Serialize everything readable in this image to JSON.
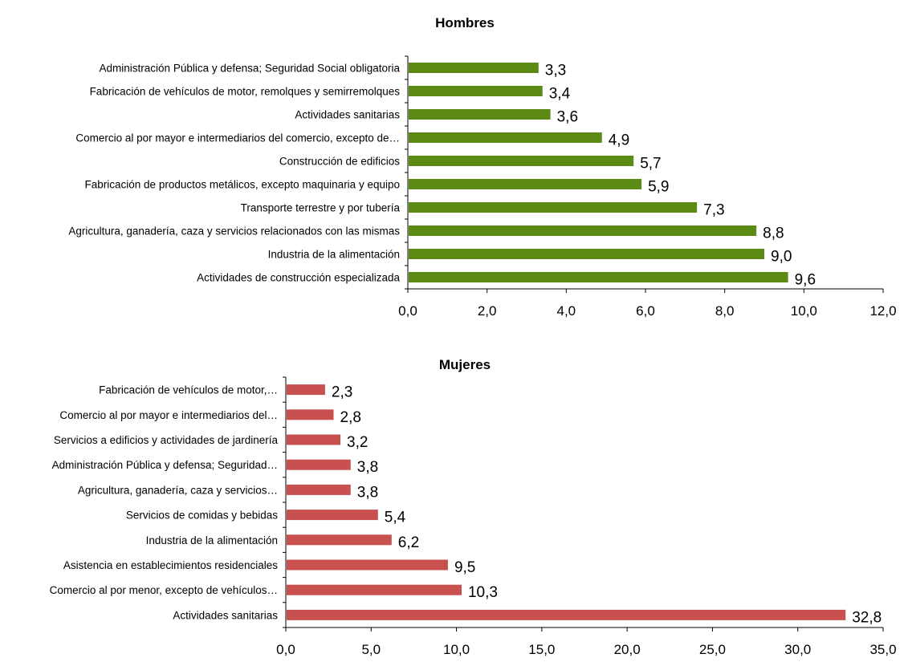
{
  "colors": {
    "hombres": "#5b8a15",
    "mujeres": "#c8504f"
  },
  "chart_data": [
    {
      "type": "bar",
      "orientation": "horizontal",
      "title": "Hombres",
      "categories": [
        "Administración Pública y defensa; Seguridad Social obligatoria",
        "Fabricación de vehículos de motor, remolques y semirremolques",
        "Actividades sanitarias",
        "Comercio al por mayor e intermediarios del comercio, excepto de…",
        "Construcción de edificios",
        "Fabricación de productos metálicos, excepto maquinaria y equipo",
        "Transporte terrestre y por tubería",
        "Agricultura, ganadería, caza y servicios relacionados con las mismas",
        "Industria de la alimentación",
        "Actividades de construcción especializada"
      ],
      "values": [
        3.3,
        3.4,
        3.6,
        4.9,
        5.7,
        5.9,
        7.3,
        8.8,
        9.0,
        9.6
      ],
      "value_labels": [
        "3,3",
        "3,4",
        "3,6",
        "4,9",
        "5,7",
        "5,9",
        "7,3",
        "8,8",
        "9,0",
        "9,6"
      ],
      "xlim": [
        0,
        12
      ],
      "ticks": [
        "0,0",
        "2,0",
        "4,0",
        "6,0",
        "8,0",
        "10,0",
        "12,0"
      ],
      "grid": false
    },
    {
      "type": "bar",
      "orientation": "horizontal",
      "title": "Mujeres",
      "categories": [
        "Fabricación de vehículos de motor,…",
        "Comercio al por mayor e intermediarios del…",
        "Servicios a edificios y actividades de jardinería",
        "Administración Pública y defensa; Seguridad…",
        "Agricultura, ganadería, caza y servicios…",
        "Servicios de comidas y bebidas",
        "Industria de la alimentación",
        "Asistencia en establecimientos residenciales",
        "Comercio al por menor, excepto de vehículos…",
        "Actividades sanitarias"
      ],
      "values": [
        2.3,
        2.8,
        3.2,
        3.8,
        3.8,
        5.4,
        6.2,
        9.5,
        10.3,
        32.8
      ],
      "value_labels": [
        "2,3",
        "2,8",
        "3,2",
        "3,8",
        "3,8",
        "5,4",
        "6,2",
        "9,5",
        "10,3",
        "32,8"
      ],
      "xlim": [
        0,
        35
      ],
      "ticks": [
        "0,0",
        "5,0",
        "10,0",
        "15,0",
        "20,0",
        "25,0",
        "30,0",
        "35,0"
      ],
      "grid": false
    }
  ]
}
